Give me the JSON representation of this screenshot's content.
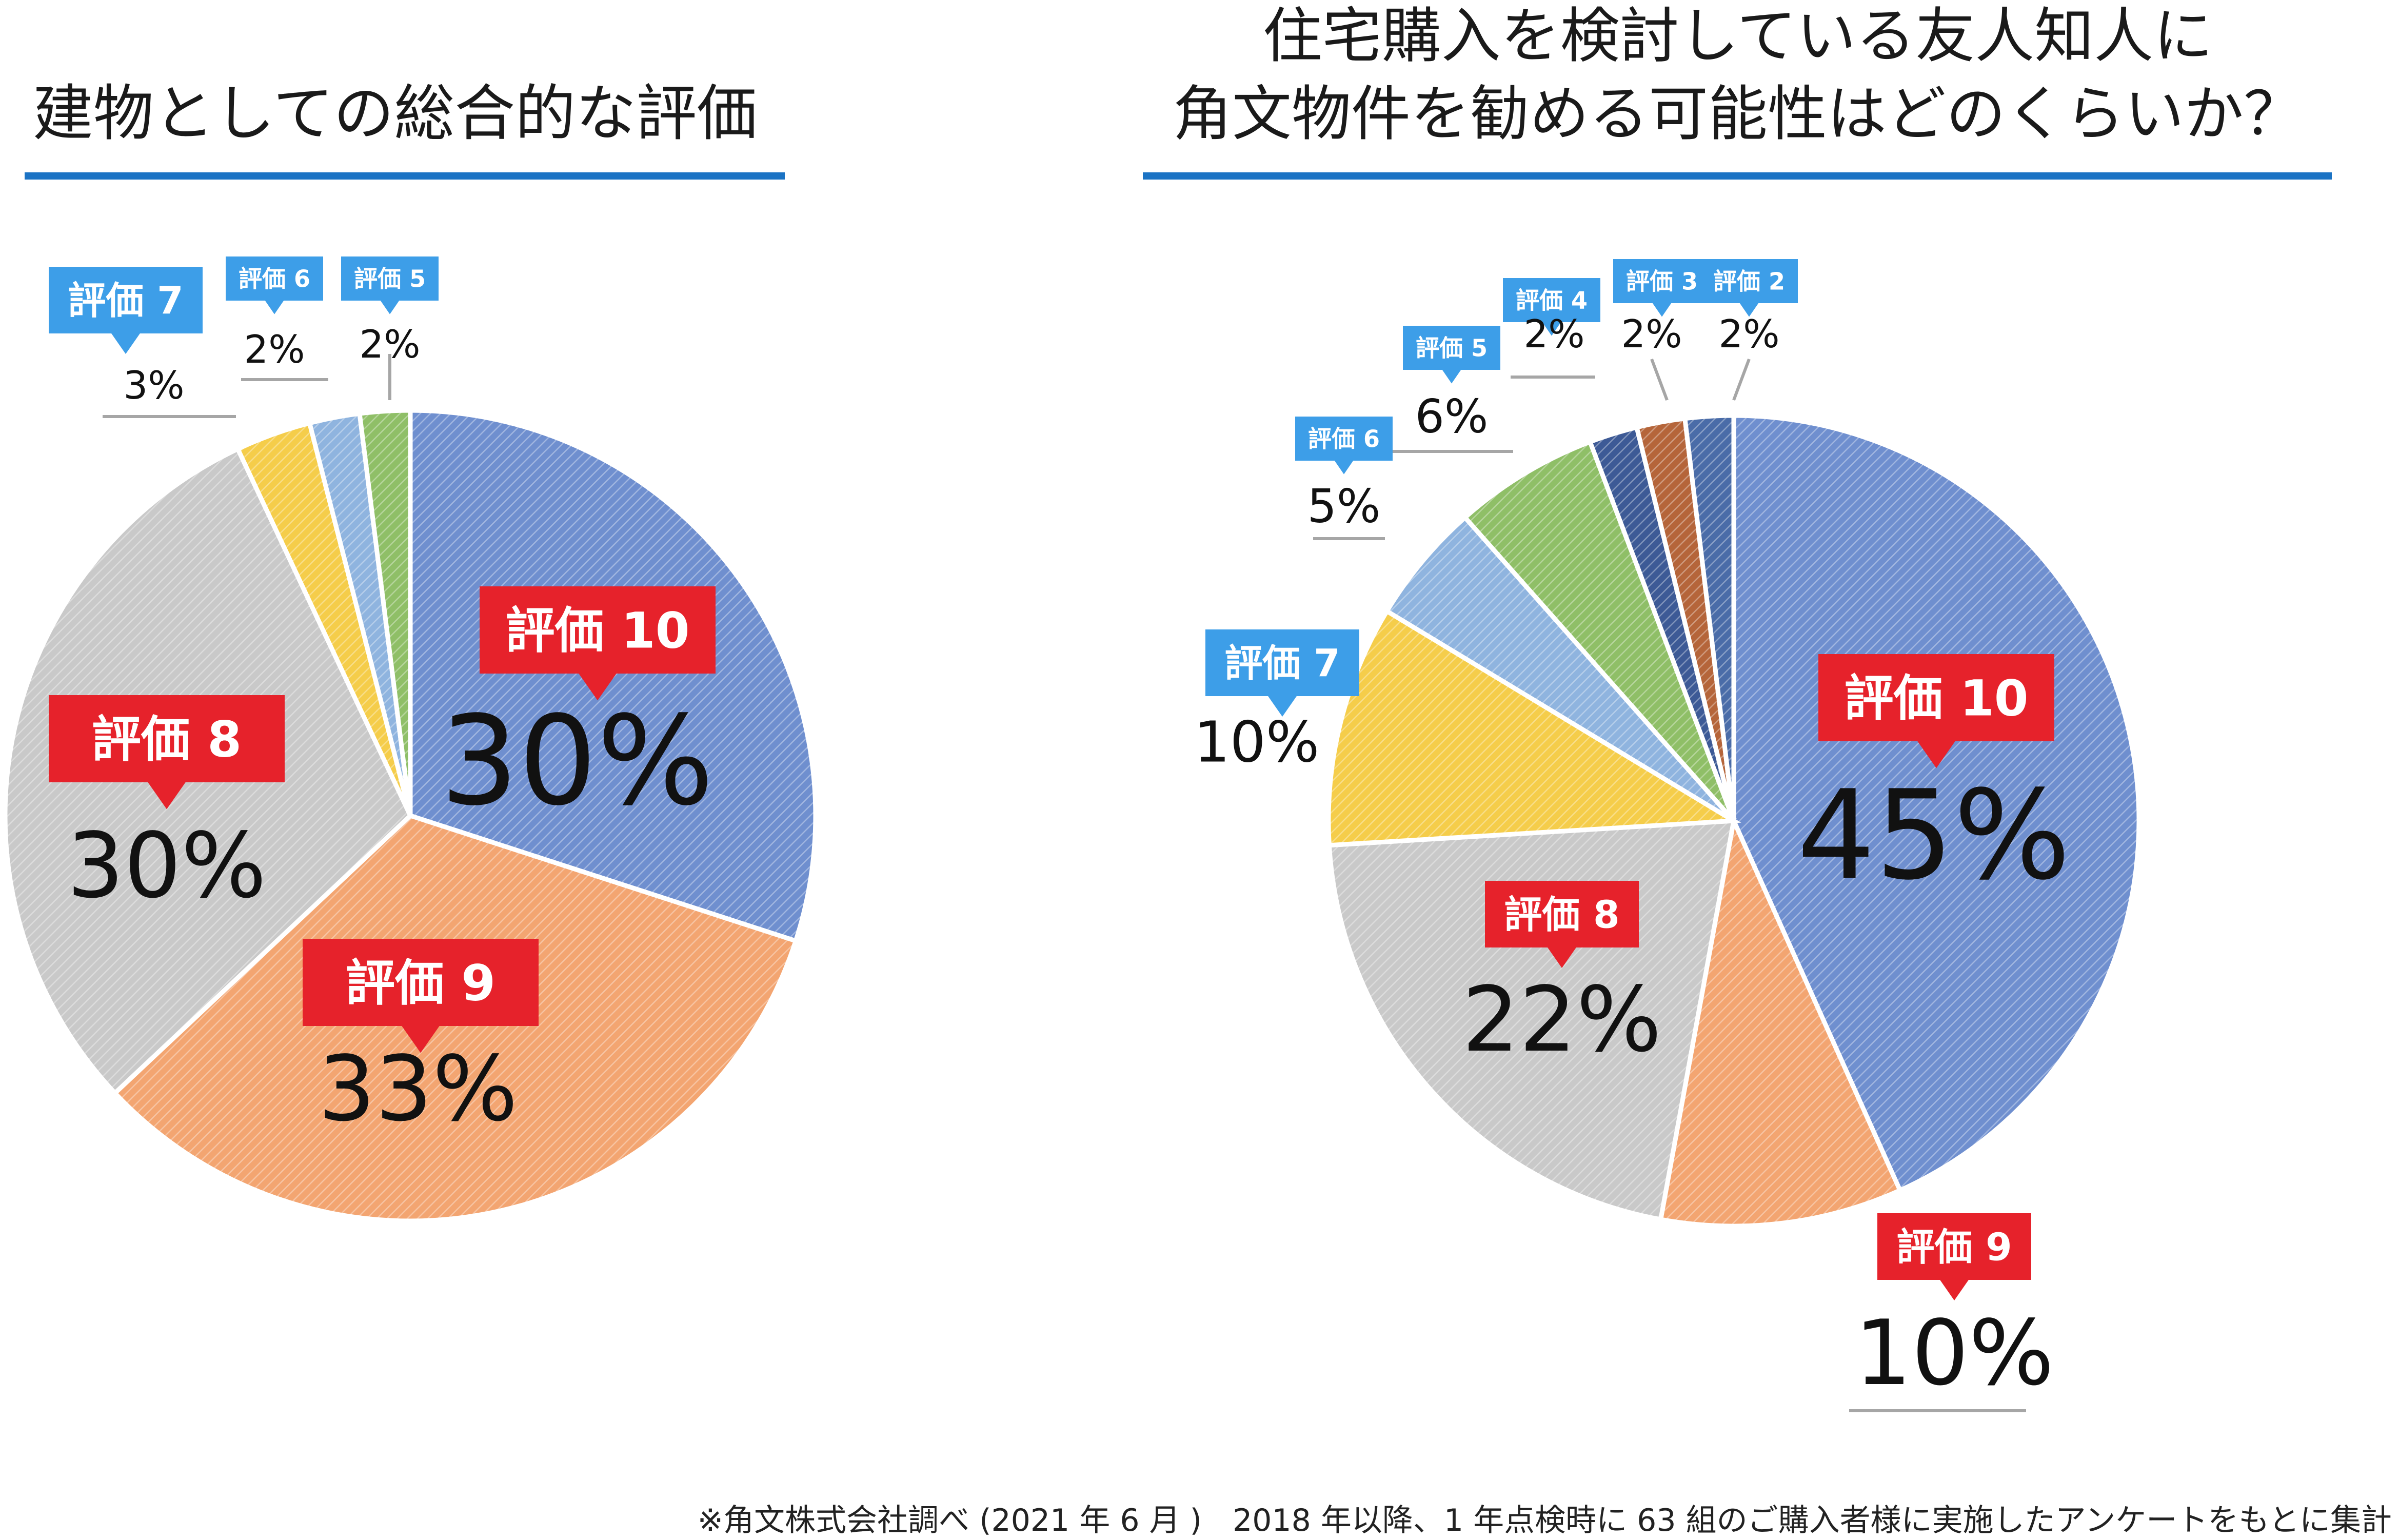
{
  "colors": {
    "title_underline": "#1b73c4",
    "tag_red": "#e6222b",
    "tag_blue": "#3d9ee8",
    "leader": "#a6a6a6"
  },
  "chart_data": [
    {
      "type": "pie",
      "title": [
        "建物としての総合的な評価"
      ],
      "slices": [
        {
          "label": "評価 10",
          "value": 30,
          "pct": "30%",
          "color": "#6f8fcf",
          "tag": "red"
        },
        {
          "label": "評価 9",
          "value": 33,
          "pct": "33%",
          "color": "#f3a571",
          "tag": "red"
        },
        {
          "label": "評価 8",
          "value": 30,
          "pct": "30%",
          "color": "#c9c9c9",
          "tag": "red"
        },
        {
          "label": "評価 7",
          "value": 3,
          "pct": "3%",
          "color": "#f5cd4a",
          "tag": "blue"
        },
        {
          "label": "評価 6",
          "value": 2,
          "pct": "2%",
          "color": "#8fb4df",
          "tag": "blue"
        },
        {
          "label": "評価 5",
          "value": 2,
          "pct": "2%",
          "color": "#8fbf67",
          "tag": "blue"
        }
      ]
    },
    {
      "type": "pie",
      "title": [
        "住宅購入を検討している友人知人に",
        "角文物件を勧める可能性はどのくらいか？"
      ],
      "slices": [
        {
          "label": "評価 10",
          "value": 45,
          "pct": "45%",
          "color": "#6f8fcf",
          "tag": "red"
        },
        {
          "label": "評価 9",
          "value": 10,
          "pct": "10%",
          "color": "#f3a571",
          "tag": "red"
        },
        {
          "label": "評価 8",
          "value": 22,
          "pct": "22%",
          "color": "#c9c9c9",
          "tag": "red"
        },
        {
          "label": "評価 7",
          "value": 10,
          "pct": "10%",
          "color": "#f5cd4a",
          "tag": "blue"
        },
        {
          "label": "評価 6",
          "value": 5,
          "pct": "5%",
          "color": "#8fb4df",
          "tag": "blue"
        },
        {
          "label": "評価 5",
          "value": 6,
          "pct": "6%",
          "color": "#8fbf67",
          "tag": "blue"
        },
        {
          "label": "評価 4",
          "value": 2,
          "pct": "2%",
          "color": "#3d5a96",
          "tag": "blue"
        },
        {
          "label": "評価 3",
          "value": 2,
          "pct": "2%",
          "color": "#b5653a",
          "tag": "blue"
        },
        {
          "label": "評価 2",
          "value": 2,
          "pct": "2%",
          "color": "#4a6ca8",
          "tag": "blue"
        }
      ]
    }
  ],
  "footnote": "※角文株式会社調べ (2021 年 6 月 )　2018 年以降、1 年点検時に 63 組のご購入者様に実施したアンケートをもとに集計"
}
